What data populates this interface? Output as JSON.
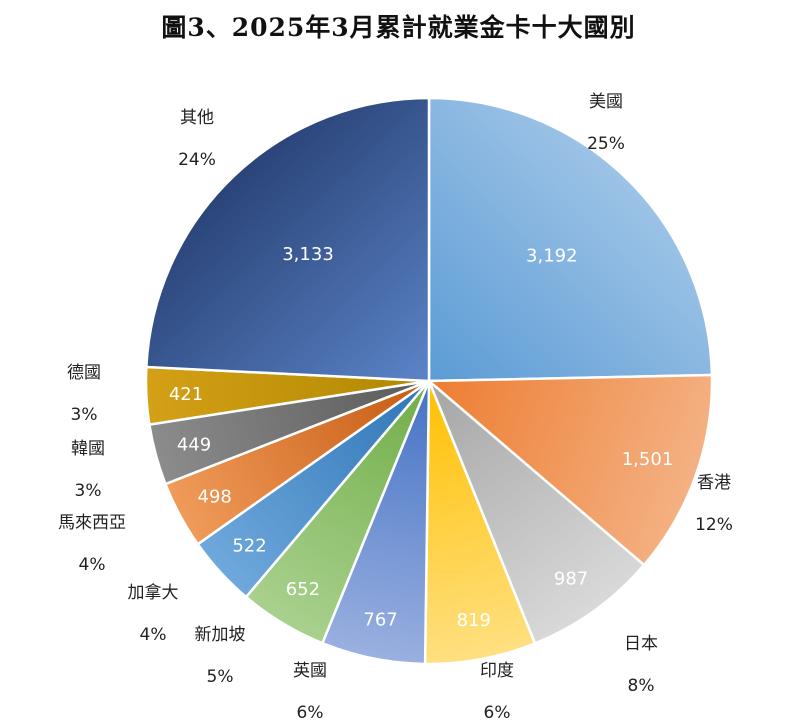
{
  "chart_data": {
    "type": "pie",
    "title": "圖3、2025年3月累計就業金卡十大國別",
    "slices": [
      {
        "name": "美國",
        "value": 3192,
        "label": "3,192",
        "percent": "25%",
        "color": "#9DC3E6",
        "color_dark": "#5B9BD5"
      },
      {
        "name": "香港",
        "value": 1501,
        "label": "1,501",
        "percent": "12%",
        "color": "#F4B183",
        "color_dark": "#ED7D31"
      },
      {
        "name": "日本",
        "value": 987,
        "label": "987",
        "percent": "8%",
        "color": "#D9D9D9",
        "color_dark": "#A5A5A5"
      },
      {
        "name": "印度",
        "value": 819,
        "label": "819",
        "percent": "6%",
        "color": "#FFE082",
        "color_dark": "#FFC000"
      },
      {
        "name": "英國",
        "value": 767,
        "label": "767",
        "percent": "6%",
        "color": "#9AB0E0",
        "color_dark": "#4472C4"
      },
      {
        "name": "新加坡",
        "value": 652,
        "label": "652",
        "percent": "5%",
        "color": "#A9D18E",
        "color_dark": "#70AD47"
      },
      {
        "name": "加拿大",
        "value": 522,
        "label": "522",
        "percent": "4%",
        "color": "#6FA8DC",
        "color_dark": "#2E75B6"
      },
      {
        "name": "馬來西亞",
        "value": 498,
        "label": "498",
        "percent": "4%",
        "color": "#F09B5A",
        "color_dark": "#C55A11"
      },
      {
        "name": "韓國",
        "value": 449,
        "label": "449",
        "percent": "3%",
        "color": "#8C8C8C",
        "color_dark": "#595959"
      },
      {
        "name": "德國",
        "value": 421,
        "label": "421",
        "percent": "3%",
        "color": "#D4A017",
        "color_dark": "#B08800"
      },
      {
        "name": "其他",
        "value": 3133,
        "label": "3,133",
        "percent": "24%",
        "color": "#5B84C8",
        "color_dark": "#2A4478"
      }
    ]
  }
}
